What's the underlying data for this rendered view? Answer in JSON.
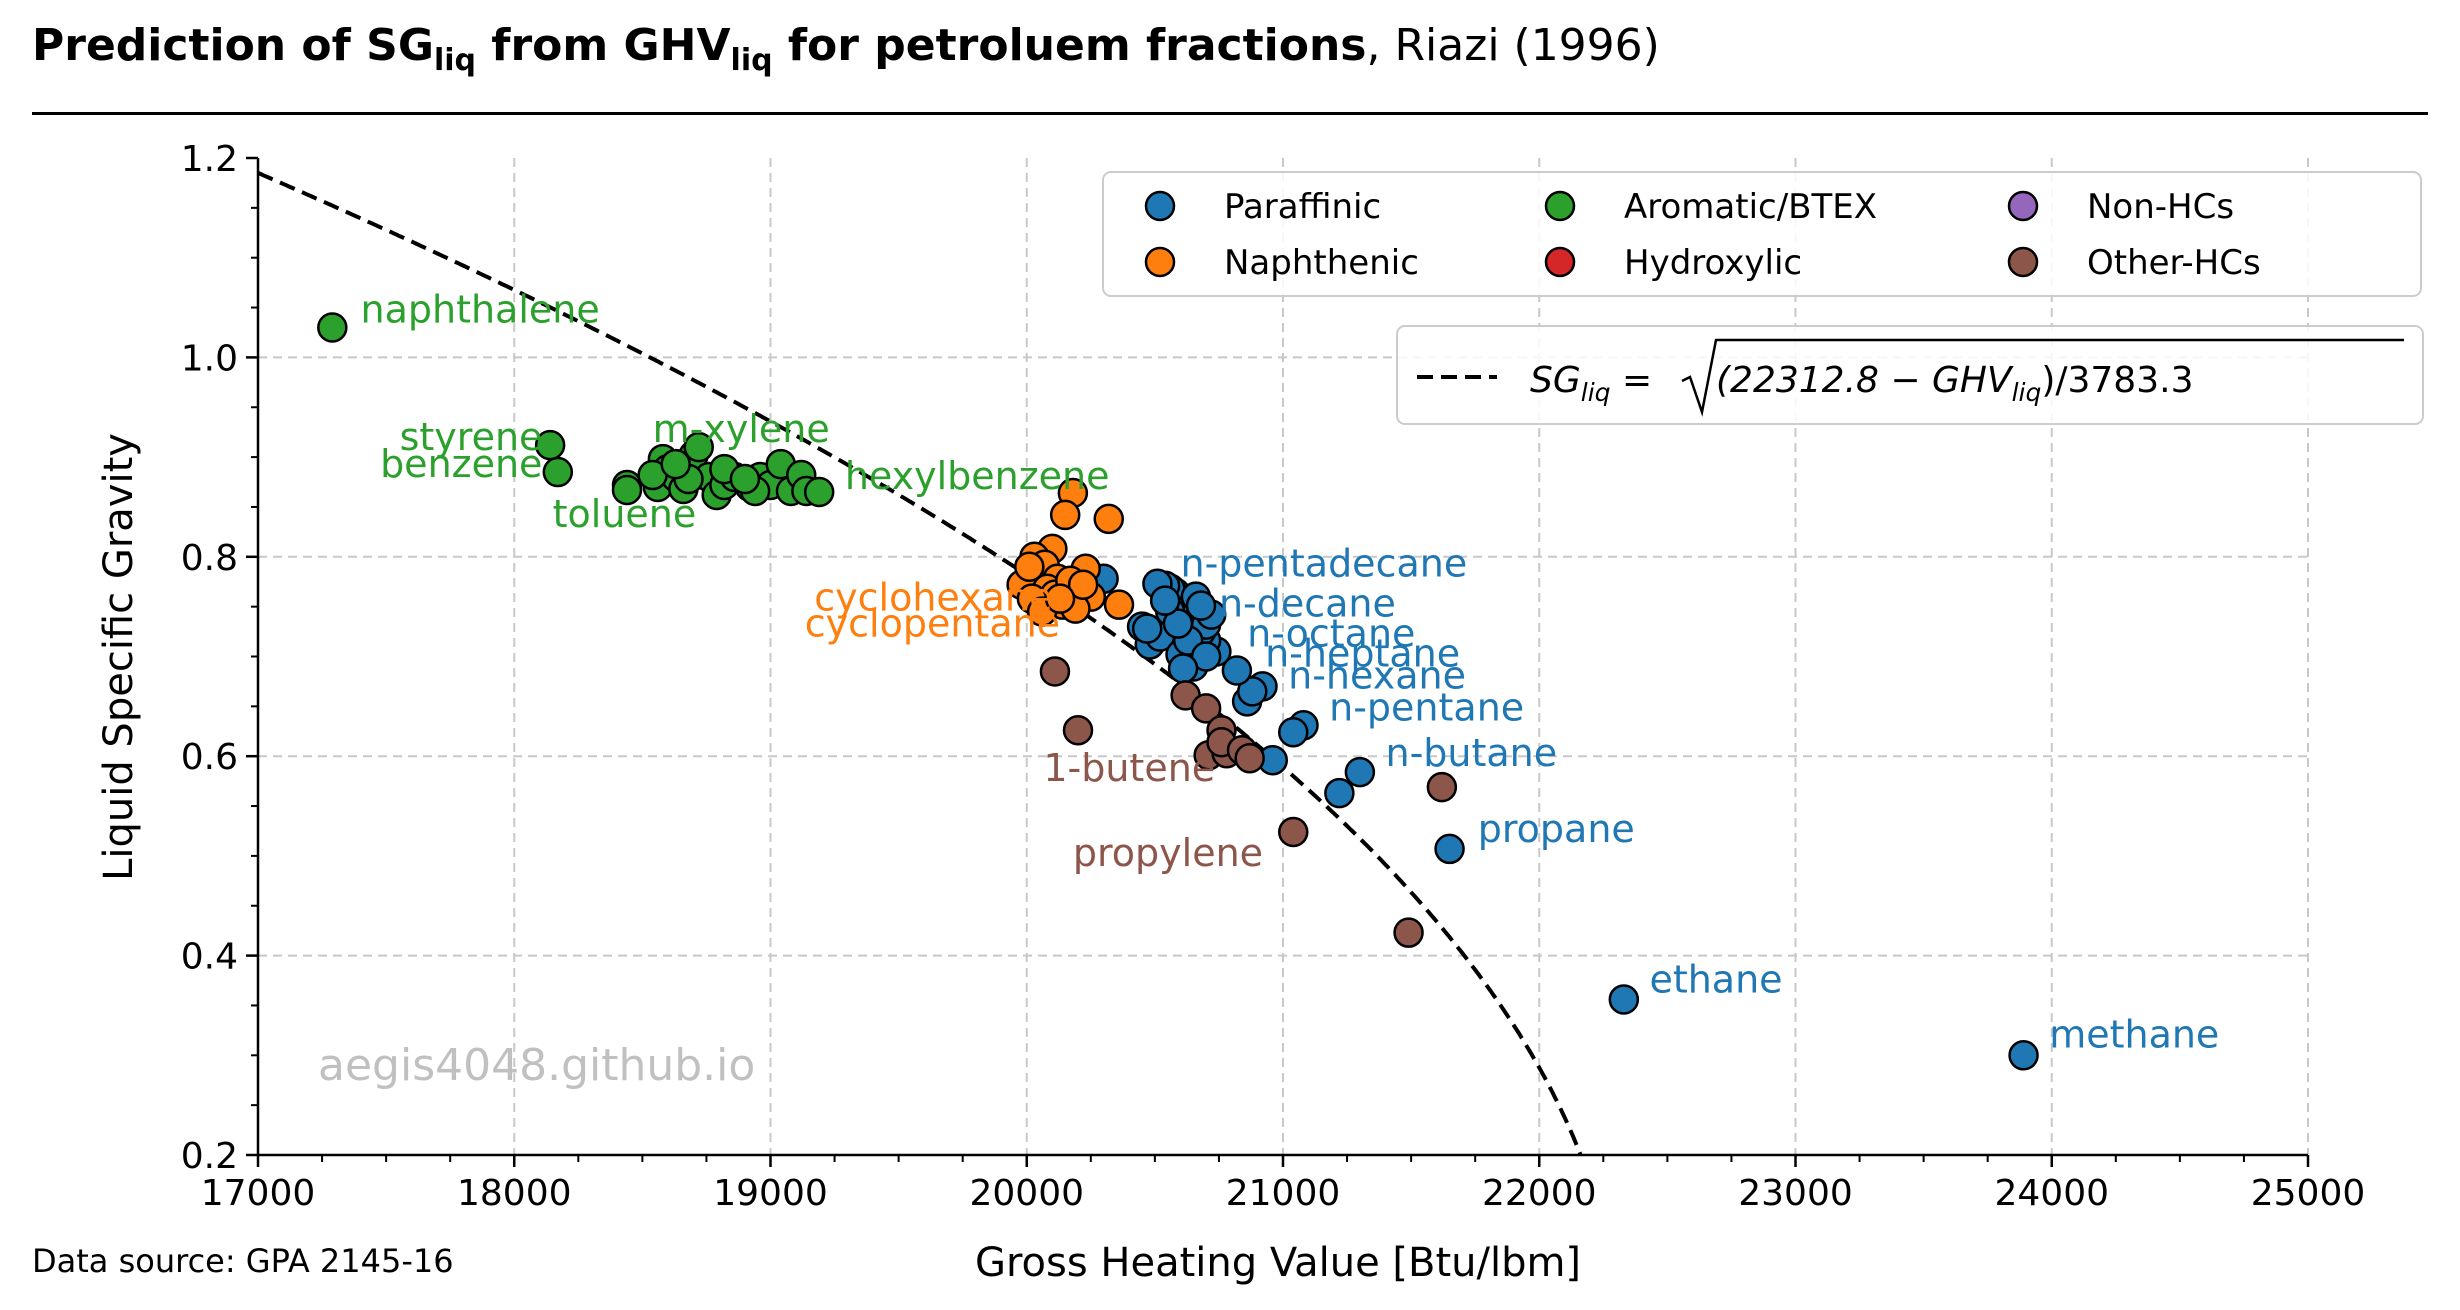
{
  "title": {
    "bold_prefix_1": "Prediction of SG",
    "sub_1": "liq",
    "bold_mid": " from GHV",
    "sub_2": "liq",
    "bold_suffix": " for petroluem fractions",
    "normal": ", Riazi (1996)"
  },
  "source": "Data source: GPA 2145-16",
  "watermark": "aegis4048.github.io",
  "chart_data": {
    "type": "scatter",
    "xlabel": "Gross Heating Value [Btu/lbm]",
    "ylabel": "Liquid Specific Gravity",
    "xlim": [
      17000,
      25000
    ],
    "ylim": [
      0.2,
      1.2
    ],
    "xticks": [
      17000,
      18000,
      19000,
      20000,
      21000,
      22000,
      23000,
      24000,
      25000
    ],
    "yticks": [
      0.2,
      0.4,
      0.6,
      0.8,
      1.0,
      1.2
    ],
    "xtick_labels": [
      "17000",
      "18000",
      "19000",
      "20000",
      "21000",
      "22000",
      "23000",
      "24000",
      "25000"
    ],
    "ytick_labels": [
      "0.2",
      "0.4",
      "0.6",
      "0.8",
      "1.0",
      "1.2"
    ],
    "grid": true,
    "legend_placement": "top-right",
    "series": [
      {
        "name": "Paraffinic",
        "color": "#1f77b4",
        "points": [
          [
            23890,
            0.3
          ],
          [
            22330,
            0.356
          ],
          [
            21650,
            0.507
          ],
          [
            21300,
            0.584
          ],
          [
            21220,
            0.563
          ],
          [
            21080,
            0.631
          ],
          [
            21040,
            0.624
          ],
          [
            20960,
            0.596
          ],
          [
            20920,
            0.67
          ],
          [
            20860,
            0.655
          ],
          [
            20880,
            0.665
          ],
          [
            20820,
            0.686
          ],
          [
            20740,
            0.705
          ],
          [
            20700,
            0.716
          ],
          [
            20680,
            0.725
          ],
          [
            20660,
            0.735
          ],
          [
            20640,
            0.745
          ],
          [
            20620,
            0.752
          ],
          [
            20600,
            0.758
          ],
          [
            20580,
            0.764
          ],
          [
            20560,
            0.768
          ],
          [
            20540,
            0.771
          ],
          [
            20510,
            0.773
          ],
          [
            20300,
            0.778
          ],
          [
            20450,
            0.73
          ],
          [
            20480,
            0.712
          ],
          [
            20520,
            0.72
          ],
          [
            20600,
            0.702
          ],
          [
            20650,
            0.69
          ],
          [
            20700,
            0.732
          ],
          [
            20720,
            0.742
          ],
          [
            20630,
            0.716
          ],
          [
            20560,
            0.745
          ],
          [
            20470,
            0.728
          ],
          [
            20660,
            0.76
          ],
          [
            20590,
            0.733
          ],
          [
            20700,
            0.7
          ],
          [
            20540,
            0.756
          ],
          [
            20610,
            0.688
          ],
          [
            20680,
            0.751
          ]
        ]
      },
      {
        "name": "Naphthenic",
        "color": "#ff7f0e",
        "points": [
          [
            20180,
            0.864
          ],
          [
            20150,
            0.842
          ],
          [
            20320,
            0.838
          ],
          [
            20230,
            0.788
          ],
          [
            20100,
            0.808
          ],
          [
            20030,
            0.8
          ],
          [
            20070,
            0.792
          ],
          [
            20120,
            0.778
          ],
          [
            20160,
            0.77
          ],
          [
            20200,
            0.765
          ],
          [
            20250,
            0.76
          ],
          [
            20050,
            0.755
          ],
          [
            19980,
            0.772
          ],
          [
            20010,
            0.79
          ],
          [
            20080,
            0.768
          ],
          [
            20140,
            0.752
          ],
          [
            20190,
            0.748
          ],
          [
            20360,
            0.752
          ],
          [
            20110,
            0.762
          ],
          [
            20020,
            0.758
          ],
          [
            20170,
            0.776
          ],
          [
            20060,
            0.745
          ],
          [
            20220,
            0.772
          ],
          [
            20130,
            0.758
          ]
        ]
      },
      {
        "name": "Aromatic/BTEX",
        "color": "#2ca02c",
        "points": [
          [
            17290,
            1.03
          ],
          [
            18140,
            0.912
          ],
          [
            18170,
            0.885
          ],
          [
            18440,
            0.872
          ],
          [
            18440,
            0.867
          ],
          [
            18560,
            0.87
          ],
          [
            18580,
            0.898
          ],
          [
            18600,
            0.888
          ],
          [
            18630,
            0.88
          ],
          [
            18660,
            0.868
          ],
          [
            18700,
            0.902
          ],
          [
            18720,
            0.91
          ],
          [
            18760,
            0.88
          ],
          [
            18790,
            0.862
          ],
          [
            18820,
            0.872
          ],
          [
            18860,
            0.88
          ],
          [
            18920,
            0.87
          ],
          [
            18960,
            0.88
          ],
          [
            19000,
            0.872
          ],
          [
            19040,
            0.893
          ],
          [
            19080,
            0.866
          ],
          [
            19120,
            0.882
          ],
          [
            19140,
            0.866
          ],
          [
            19190,
            0.865
          ],
          [
            18940,
            0.866
          ],
          [
            18680,
            0.878
          ],
          [
            18540,
            0.882
          ],
          [
            18820,
            0.888
          ],
          [
            18900,
            0.878
          ],
          [
            18630,
            0.893
          ]
        ]
      },
      {
        "name": "Hydroxylic",
        "color": "#d62728",
        "points": []
      },
      {
        "name": "Non-HCs",
        "color": "#9467bd",
        "points": []
      },
      {
        "name": "Other-HCs",
        "color": "#8c564b",
        "points": [
          [
            20110,
            0.685
          ],
          [
            20200,
            0.626
          ],
          [
            20620,
            0.661
          ],
          [
            20700,
            0.648
          ],
          [
            20760,
            0.626
          ],
          [
            20710,
            0.601
          ],
          [
            20780,
            0.603
          ],
          [
            20760,
            0.614
          ],
          [
            20840,
            0.606
          ],
          [
            20870,
            0.598
          ],
          [
            21040,
            0.524
          ],
          [
            21620,
            0.569
          ],
          [
            21490,
            0.423
          ]
        ]
      }
    ],
    "annotations": [
      {
        "text": "naphthalene",
        "x": 17400,
        "y": 1.035,
        "color": "#2ca02c",
        "anchor": "start"
      },
      {
        "text": "styrene",
        "x": 18110,
        "y": 0.907,
        "color": "#2ca02c",
        "anchor": "end"
      },
      {
        "text": "benzene",
        "x": 18110,
        "y": 0.88,
        "color": "#2ca02c",
        "anchor": "end"
      },
      {
        "text": "toluene",
        "x": 18430,
        "y": 0.83,
        "color": "#2ca02c",
        "anchor": "middle"
      },
      {
        "text": "m-xylene",
        "x": 18540,
        "y": 0.915,
        "color": "#2ca02c",
        "anchor": "start"
      },
      {
        "text": "hexylbenzene",
        "x": 19290,
        "y": 0.868,
        "color": "#2ca02c",
        "anchor": "start"
      },
      {
        "text": "cyclohexane",
        "x": 20100,
        "y": 0.746,
        "color": "#ff7f0e",
        "anchor": "end"
      },
      {
        "text": "cyclopentane",
        "x": 20130,
        "y": 0.72,
        "color": "#ff7f0e",
        "anchor": "end"
      },
      {
        "text": "n-pentadecane",
        "x": 20600,
        "y": 0.78,
        "color": "#1f77b4",
        "anchor": "start"
      },
      {
        "text": "n-decane",
        "x": 20750,
        "y": 0.74,
        "color": "#1f77b4",
        "anchor": "start"
      },
      {
        "text": "n-octane",
        "x": 20860,
        "y": 0.71,
        "color": "#1f77b4",
        "anchor": "start"
      },
      {
        "text": "n-heptane",
        "x": 20930,
        "y": 0.69,
        "color": "#1f77b4",
        "anchor": "start"
      },
      {
        "text": "n-hexane",
        "x": 21020,
        "y": 0.668,
        "color": "#1f77b4",
        "anchor": "start"
      },
      {
        "text": "n-pentane",
        "x": 21180,
        "y": 0.636,
        "color": "#1f77b4",
        "anchor": "start"
      },
      {
        "text": "n-butane",
        "x": 21400,
        "y": 0.59,
        "color": "#1f77b4",
        "anchor": "start"
      },
      {
        "text": "propane",
        "x": 21760,
        "y": 0.514,
        "color": "#1f77b4",
        "anchor": "start"
      },
      {
        "text": "ethane",
        "x": 22430,
        "y": 0.363,
        "color": "#1f77b4",
        "anchor": "start"
      },
      {
        "text": "methane",
        "x": 23990,
        "y": 0.308,
        "color": "#1f77b4",
        "anchor": "start"
      },
      {
        "text": "1-butene",
        "x": 20400,
        "y": 0.575,
        "color": "#8c564b",
        "anchor": "middle"
      },
      {
        "text": "propylene",
        "x": 20180,
        "y": 0.49,
        "color": "#8c564b",
        "anchor": "start"
      }
    ],
    "model_line": {
      "label": "SG_liq = sqrt((22312.8 - GHV_liq)/3783.3)",
      "a": 22312.8,
      "b": 3783.3,
      "color": "#000000",
      "style": "dashed"
    },
    "legend_columns": 3
  },
  "legend2": {
    "lhs": "SG",
    "lhs_sub": "liq",
    "eq": " = ",
    "sqrt_body": "(22312.8 − GHV",
    "rhs_sub": "liq",
    "tail": ")/3783.3"
  }
}
